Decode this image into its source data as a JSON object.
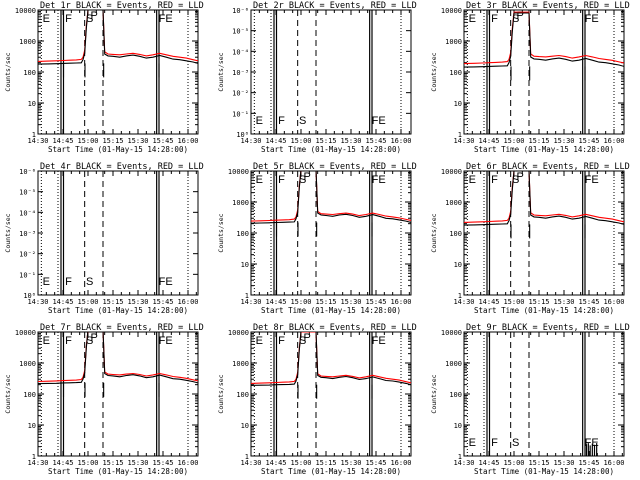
{
  "colors": {
    "events": "#000000",
    "lld": "#ff0000",
    "background": "#ffffff"
  },
  "chart_data": {
    "type": "line",
    "x_units": "minutes after 14:28:00",
    "xlim": [
      2,
      98
    ],
    "x_ticks": [
      2,
      17,
      32,
      47,
      62,
      77,
      92
    ],
    "x_tick_labels": [
      "14:30",
      "14:45",
      "15:00",
      "15:15",
      "15:30",
      "15:45",
      "16:00"
    ],
    "xlabel": "Start Time (01-May-15 14:28:00)",
    "ylabel": "Counts/sec",
    "ylim": [
      1,
      10000
    ],
    "y_ticks": [
      1,
      10,
      100,
      1000,
      10000
    ],
    "y_tick_labels": [
      "1",
      "10",
      "100",
      "1000",
      "10000"
    ],
    "y_tick_labels_exp": [
      "10⁻⁶",
      "10⁻⁵",
      "10⁻⁴",
      "10⁻³",
      "10⁻²",
      "10⁻¹",
      "10⁰"
    ],
    "vlines": {
      "dotted": [
        4,
        14,
        92
      ],
      "solid": [
        15.8,
        17.3,
        73.2,
        74.6
      ],
      "dashed": [
        30,
        41
      ]
    },
    "flags": [
      {
        "label": "E",
        "x": 4.8
      },
      {
        "label": "F",
        "x": 18.3
      },
      {
        "label": "S",
        "x": 30.8
      },
      {
        "label": "FE",
        "x": 74.4
      },
      {
        "label": "P",
        "x": 33.5
      }
    ],
    "series_template": {
      "events": {
        "name": "Events (black)",
        "x": [
          2,
          8,
          13,
          17,
          21,
          25,
          28,
          29,
          30,
          31,
          32,
          33,
          35,
          37,
          38,
          39,
          40,
          41,
          42,
          44,
          47,
          51,
          55,
          59,
          63,
          67,
          71,
          75,
          79,
          83,
          87,
          91,
          95,
          98
        ],
        "y": [
          180,
          183,
          185,
          190,
          192,
          195,
          198,
          250,
          400,
          2500,
          10000,
          10000,
          10000,
          10000,
          10000,
          10000,
          10000,
          10000,
          380,
          330,
          320,
          300,
          330,
          350,
          320,
          280,
          300,
          340,
          300,
          260,
          250,
          230,
          210,
          190
        ]
      },
      "lld": {
        "name": "LLD (red)",
        "x": [
          2,
          8,
          13,
          17,
          21,
          25,
          28,
          29,
          30,
          31,
          32,
          33,
          35,
          37,
          38,
          39,
          40,
          41,
          42,
          44,
          47,
          51,
          55,
          59,
          63,
          67,
          71,
          75,
          79,
          83,
          87,
          91,
          95,
          98
        ],
        "y": [
          220,
          225,
          230,
          235,
          240,
          245,
          255,
          300,
          500,
          3000,
          10000,
          10000,
          10000,
          10000,
          10000,
          10000,
          10000,
          10000,
          450,
          380,
          370,
          360,
          380,
          400,
          370,
          330,
          360,
          400,
          360,
          320,
          300,
          280,
          250,
          230
        ]
      }
    },
    "panels": [
      {
        "title": "Det 1r BLACK = Events, RED = LLD",
        "scale": "counts",
        "series": [
          {
            "name": "Events",
            "level": 1.0
          },
          {
            "name": "LLD",
            "level": 1.0
          }
        ]
      },
      {
        "title": "Det 2r BLACK = Events, RED = LLD",
        "scale": "exponent",
        "series": []
      },
      {
        "title": "Det 3r BLACK = Events, RED = LLD",
        "scale": "counts",
        "series": [
          {
            "name": "Events",
            "level": 0.8
          },
          {
            "name": "LLD",
            "level": 0.85
          }
        ]
      },
      {
        "title": "Det 4r BLACK = Events, RED = LLD",
        "scale": "exponent",
        "series": []
      },
      {
        "title": "Det 5r BLACK = Events, RED = LLD",
        "scale": "counts",
        "series": [
          {
            "name": "Events",
            "level": 1.15
          },
          {
            "name": "LLD",
            "level": 1.1
          }
        ]
      },
      {
        "title": "Det 6r BLACK = Events, RED = LLD",
        "scale": "counts",
        "series": [
          {
            "name": "Events",
            "level": 1.0
          },
          {
            "name": "LLD",
            "level": 1.0
          }
        ]
      },
      {
        "title": "Det 7r BLACK = Events, RED = LLD",
        "scale": "counts",
        "series": [
          {
            "name": "Events",
            "level": 1.2
          },
          {
            "name": "LLD",
            "level": 1.15
          }
        ]
      },
      {
        "title": "Det 8r BLACK = Events, RED = LLD",
        "scale": "counts",
        "series": [
          {
            "name": "Events",
            "level": 1.05
          },
          {
            "name": "LLD",
            "level": 1.0
          }
        ]
      },
      {
        "title": "Det 9r BLACK = Events, RED = LLD",
        "scale": "spikes",
        "series": [],
        "spikes": [
          {
            "x": 75.5,
            "y": 2.4
          },
          {
            "x": 76.6,
            "y": 2.6
          },
          {
            "x": 77.7,
            "y": 2.2
          },
          {
            "x": 79.0,
            "y": 2.5
          },
          {
            "x": 80.3,
            "y": 2.3
          },
          {
            "x": 81.6,
            "y": 2.6
          }
        ]
      }
    ]
  }
}
